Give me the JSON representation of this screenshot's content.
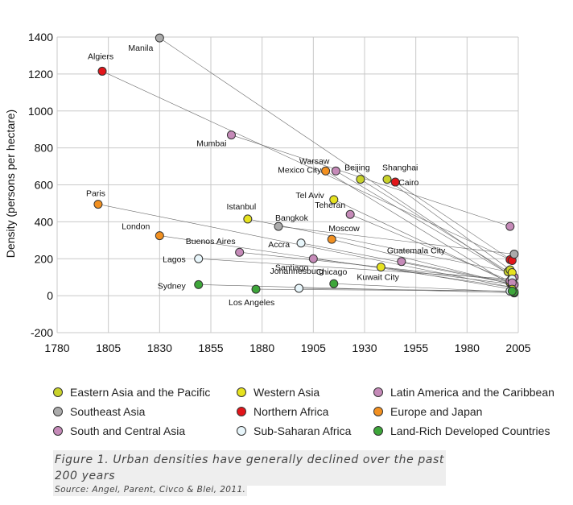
{
  "chart_data": {
    "type": "scatter",
    "title": "",
    "xlabel": "",
    "ylabel": "Density (persons per hectare)",
    "xlim": [
      1780,
      2005
    ],
    "ylim": [
      -200,
      1400
    ],
    "xticks": [
      "1780",
      "1805",
      "1830",
      "1855",
      "1880",
      "1905",
      "1930",
      "1955",
      "1980",
      "2005"
    ],
    "yticks": [
      "-200",
      "0",
      "200",
      "400",
      "600",
      "800",
      "1000",
      "1200",
      "1400"
    ],
    "grid": true,
    "legend_position": "bottom",
    "regions": [
      {
        "key": "east_asia",
        "name": "Eastern Asia and the Pacific",
        "color": "#c9d22a"
      },
      {
        "key": "southeast_asia",
        "name": "Southeast Asia",
        "color": "#ababab"
      },
      {
        "key": "south_central_asia",
        "name": "South and Central Asia",
        "color": "#c58ab8"
      },
      {
        "key": "western_asia",
        "name": "Western Asia",
        "color": "#e6e21f"
      },
      {
        "key": "northern_africa",
        "name": "Northern Africa",
        "color": "#e2151a"
      },
      {
        "key": "subsaharan_africa",
        "name": "Sub-Saharan Africa",
        "color": "#e8f6fb"
      },
      {
        "key": "latin_america",
        "name": "Latin America and the Caribbean",
        "color": "#c58ab8"
      },
      {
        "key": "europe_japan",
        "name": "Europe and Japan",
        "color": "#f29020"
      },
      {
        "key": "land_rich",
        "name": "Land-Rich Developed Countries",
        "color": "#3ea63a"
      }
    ],
    "series": [
      {
        "city": "Manila",
        "region": "southeast_asia",
        "x": 1830,
        "y": 1395,
        "end_x": 2002,
        "end_y": 105
      },
      {
        "city": "Algiers",
        "region": "northern_africa",
        "x": 1802,
        "y": 1215,
        "end_x": 2001,
        "end_y": 195
      },
      {
        "city": "Mumbai",
        "region": "south_central_asia",
        "x": 1865,
        "y": 870,
        "end_x": 2001,
        "end_y": 375
      },
      {
        "city": "Warsaw",
        "region": "europe_japan",
        "x": 1911,
        "y": 675,
        "end_x": 2002,
        "end_y": 55
      },
      {
        "city": "Mexico City",
        "region": "latin_america",
        "x": 1916,
        "y": 675,
        "end_x": 2003,
        "end_y": 100
      },
      {
        "city": "Beijing",
        "region": "east_asia",
        "x": 1928,
        "y": 630,
        "end_x": 2000,
        "end_y": 130
      },
      {
        "city": "Shanghai",
        "region": "east_asia",
        "x": 1941,
        "y": 630,
        "end_x": 2001,
        "end_y": 140
      },
      {
        "city": "Cairo",
        "region": "northern_africa",
        "x": 1945,
        "y": 615,
        "end_x": 2002,
        "end_y": 190
      },
      {
        "city": "Tel Aviv",
        "region": "western_asia",
        "x": 1915,
        "y": 520,
        "end_x": 2001,
        "end_y": 70
      },
      {
        "city": "Teheran",
        "region": "south_central_asia",
        "x": 1923,
        "y": 440,
        "end_x": 2001,
        "end_y": 80
      },
      {
        "city": "Paris",
        "region": "europe_japan",
        "x": 1800,
        "y": 495,
        "end_x": 2002,
        "end_y": 45
      },
      {
        "city": "Istanbul",
        "region": "western_asia",
        "x": 1873,
        "y": 415,
        "end_x": 2002,
        "end_y": 125
      },
      {
        "city": "Bangkok",
        "region": "southeast_asia",
        "x": 1888,
        "y": 375,
        "end_x": 2003,
        "end_y": 225
      },
      {
        "city": "London",
        "region": "europe_japan",
        "x": 1830,
        "y": 325,
        "end_x": 2002,
        "end_y": 45
      },
      {
        "city": "Moscow",
        "region": "europe_japan",
        "x": 1914,
        "y": 305,
        "end_x": 2002,
        "end_y": 60
      },
      {
        "city": "Accra",
        "region": "subsaharan_africa",
        "x": 1899,
        "y": 285,
        "end_x": 2002,
        "end_y": 65
      },
      {
        "city": "Buenos Aires",
        "region": "latin_america",
        "x": 1869,
        "y": 235,
        "end_x": 2002,
        "end_y": 80
      },
      {
        "city": "Lagos",
        "region": "subsaharan_africa",
        "x": 1849,
        "y": 200,
        "end_x": 2002,
        "end_y": 90
      },
      {
        "city": "Santiago",
        "region": "latin_america",
        "x": 1905,
        "y": 200,
        "end_x": 2003,
        "end_y": 60
      },
      {
        "city": "Guatemala City",
        "region": "latin_america",
        "x": 1948,
        "y": 185,
        "end_x": 2002,
        "end_y": 70
      },
      {
        "city": "Kuwait City",
        "region": "western_asia",
        "x": 1938,
        "y": 155,
        "end_x": 2002,
        "end_y": 35
      },
      {
        "city": "Sydney",
        "region": "land_rich",
        "x": 1849,
        "y": 60,
        "end_x": 2003,
        "end_y": 15
      },
      {
        "city": "Chicago",
        "region": "land_rich",
        "x": 1915,
        "y": 65,
        "end_x": 2003,
        "end_y": 20
      },
      {
        "city": "Johannesburg",
        "region": "subsaharan_africa",
        "x": 1898,
        "y": 40,
        "end_x": 2001,
        "end_y": 25
      },
      {
        "city": "Los Angeles",
        "region": "land_rich",
        "x": 1877,
        "y": 35,
        "end_x": 2002,
        "end_y": 25
      }
    ]
  },
  "caption": {
    "line1": "Figure 1. Urban densities have generally declined over the past",
    "line2": "200 years",
    "source": "Source: Angel, Parent, Civco & Blei, 2011."
  }
}
